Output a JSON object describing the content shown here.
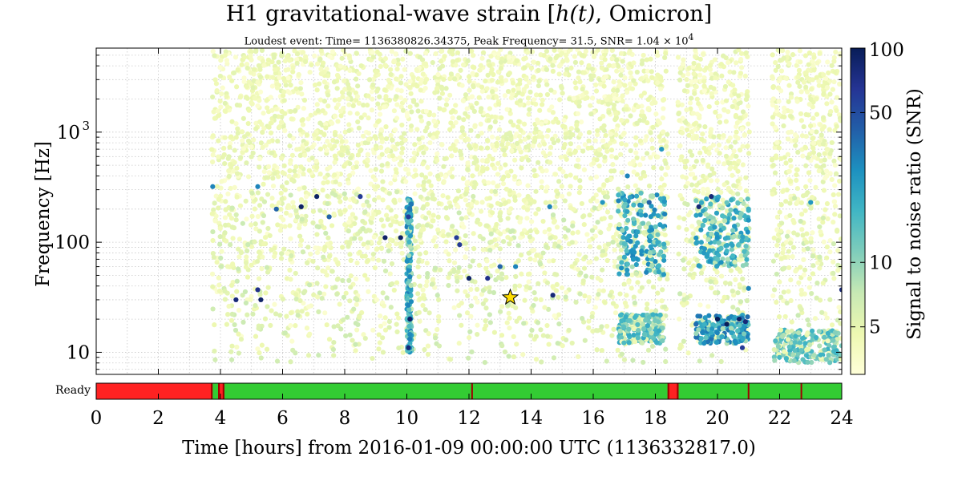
{
  "chart_data": {
    "type": "scatter",
    "title_prefix": "H1 gravitational-wave strain [",
    "title_math": "h(t)",
    "title_suffix": ", Omicron]",
    "subtitle": "Loudest event: Time= 1136380826.34375, Peak Frequency= 31.5, SNR= 1.04 × 10",
    "subtitle_exp": "4",
    "xlabel": "Time [hours] from 2016-01-09 00:00:00 UTC (1136332817.0)",
    "ylabel": "Frequency [Hz]",
    "xlim": [
      0,
      24
    ],
    "ylim": [
      6.3,
      5800
    ],
    "yscale": "log",
    "x_ticks": [
      "0",
      "2",
      "4",
      "6",
      "8",
      "10",
      "12",
      "14",
      "16",
      "18",
      "20",
      "22",
      "24"
    ],
    "y_ticks": [
      {
        "value": 10,
        "label": "10"
      },
      {
        "value": 100,
        "label": "100"
      },
      {
        "value": 1000,
        "label": "10",
        "exp": "3"
      }
    ],
    "grid": true,
    "colorbar": {
      "label": "Signal to noise ratio (SNR)",
      "scale": "log",
      "range": [
        3,
        100
      ],
      "ticks": [
        {
          "value": 5,
          "label": "5"
        },
        {
          "value": 10,
          "label": "10"
        },
        {
          "value": 50,
          "label": "50"
        },
        {
          "value": 100,
          "label": "100"
        }
      ],
      "colors": [
        "#ffffd9",
        "#edf8b1",
        "#c7e9b4",
        "#7fcdbb",
        "#41b6c4",
        "#1d91c0",
        "#225ea8",
        "#253494",
        "#081d58"
      ]
    },
    "loudest_event": {
      "x": 13.33,
      "y": 31.5,
      "snr": 10400,
      "marker_color": "#ffdd00"
    },
    "data_gaps_hours": [
      [
        0,
        3.72
      ],
      [
        18.42,
        18.72
      ],
      [
        21.03,
        21.75
      ]
    ],
    "snr_clusters": [
      {
        "x_range": [
          10.0,
          10.15
        ],
        "y_range": [
          10,
          250
        ],
        "snr": 20
      },
      {
        "x_range": [
          16.8,
          18.3
        ],
        "y_range": [
          50,
          280
        ],
        "snr": 18
      },
      {
        "x_range": [
          16.8,
          18.3
        ],
        "y_range": [
          12,
          22
        ],
        "snr": 12
      },
      {
        "x_range": [
          19.3,
          21.0
        ],
        "y_range": [
          60,
          260
        ],
        "snr": 16
      },
      {
        "x_range": [
          19.3,
          21.0
        ],
        "y_range": [
          12,
          22
        ],
        "snr": 22
      },
      {
        "x_range": [
          21.8,
          24.0
        ],
        "y_range": [
          8,
          16
        ],
        "snr": 11
      }
    ],
    "loud_points": [
      {
        "x": 3.75,
        "y": 320,
        "snr": 30
      },
      {
        "x": 4.5,
        "y": 30,
        "snr": 80
      },
      {
        "x": 5.2,
        "y": 37,
        "snr": 70
      },
      {
        "x": 5.3,
        "y": 30,
        "snr": 90
      },
      {
        "x": 5.2,
        "y": 320,
        "snr": 30
      },
      {
        "x": 5.8,
        "y": 200,
        "snr": 40
      },
      {
        "x": 6.6,
        "y": 210,
        "snr": 90
      },
      {
        "x": 7.1,
        "y": 260,
        "snr": 90
      },
      {
        "x": 7.5,
        "y": 170,
        "snr": 40
      },
      {
        "x": 8.5,
        "y": 260,
        "snr": 60
      },
      {
        "x": 9.3,
        "y": 110,
        "snr": 90
      },
      {
        "x": 9.8,
        "y": 110,
        "snr": 90
      },
      {
        "x": 10.05,
        "y": 170,
        "snr": 60
      },
      {
        "x": 10.1,
        "y": 20,
        "snr": 90
      },
      {
        "x": 10.05,
        "y": 11,
        "snr": 80
      },
      {
        "x": 11.6,
        "y": 110,
        "snr": 60
      },
      {
        "x": 11.7,
        "y": 95,
        "snr": 60
      },
      {
        "x": 12.0,
        "y": 47,
        "snr": 90
      },
      {
        "x": 12.6,
        "y": 47,
        "snr": 70
      },
      {
        "x": 13.0,
        "y": 60,
        "snr": 40
      },
      {
        "x": 13.5,
        "y": 60,
        "snr": 30
      },
      {
        "x": 14.7,
        "y": 33,
        "snr": 80
      },
      {
        "x": 14.6,
        "y": 210,
        "snr": 30
      },
      {
        "x": 16.3,
        "y": 230,
        "snr": 25
      },
      {
        "x": 17.1,
        "y": 400,
        "snr": 30
      },
      {
        "x": 17.8,
        "y": 230,
        "snr": 40
      },
      {
        "x": 18.2,
        "y": 700,
        "snr": 25
      },
      {
        "x": 18.3,
        "y": 180,
        "snr": 30
      },
      {
        "x": 19.4,
        "y": 210,
        "snr": 80
      },
      {
        "x": 19.8,
        "y": 260,
        "snr": 80
      },
      {
        "x": 20.0,
        "y": 20,
        "snr": 100
      },
      {
        "x": 20.3,
        "y": 18,
        "snr": 100
      },
      {
        "x": 20.7,
        "y": 20,
        "snr": 90
      },
      {
        "x": 20.9,
        "y": 19,
        "snr": 80
      },
      {
        "x": 20.8,
        "y": 11,
        "snr": 60
      },
      {
        "x": 21.0,
        "y": 38,
        "snr": 30
      },
      {
        "x": 23.0,
        "y": 230,
        "snr": 25
      },
      {
        "x": 24.0,
        "y": 37,
        "snr": 80
      }
    ],
    "segments": {
      "label": "Ready",
      "active_color": "#33cc33",
      "inactive_color": "#ff2222",
      "edge_color": "#a00000",
      "ranges": [
        {
          "start": 0,
          "end": 3.72,
          "state": "inactive"
        },
        {
          "start": 3.72,
          "end": 3.95,
          "state": "active"
        },
        {
          "start": 3.95,
          "end": 4.1,
          "state": "inactive"
        },
        {
          "start": 4.1,
          "end": 18.42,
          "state": "active"
        },
        {
          "start": 18.42,
          "end": 18.72,
          "state": "inactive"
        },
        {
          "start": 18.72,
          "end": 24,
          "state": "active"
        }
      ],
      "boundaries": [
        12.1,
        21.0,
        22.7
      ]
    }
  }
}
